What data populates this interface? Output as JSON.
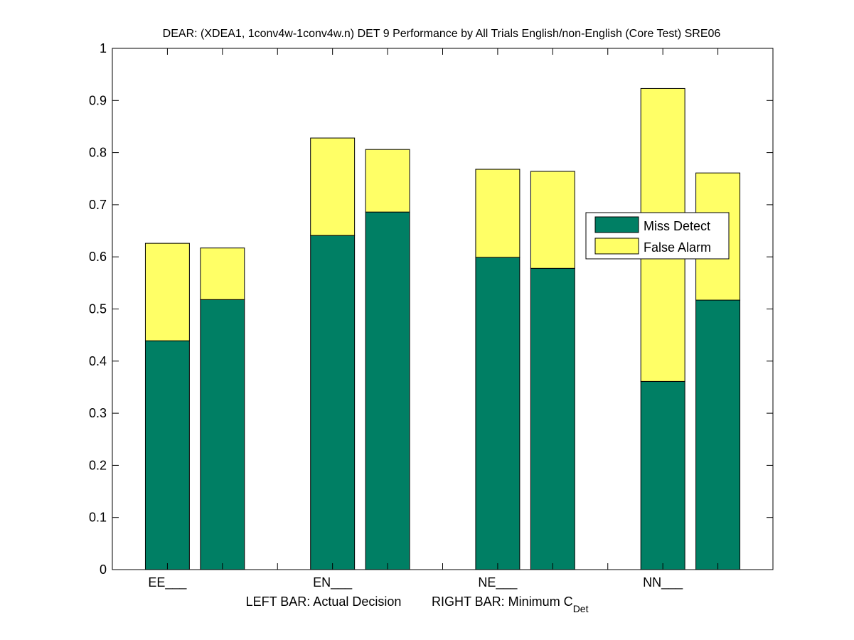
{
  "chart_data": {
    "type": "bar",
    "stacked": true,
    "title": "DEAR: (XDEA1, 1conv4w-1conv4w.n) DET 9 Performance by All Trials English/non-English (Core Test) SRE06",
    "xlabel_left": "LEFT BAR: Actual Decision",
    "xlabel_right_main": "RIGHT BAR: Minimum C",
    "xlabel_right_sub": "Det",
    "ylabel": "",
    "ylim": [
      0,
      1
    ],
    "yticks": [
      "0",
      "0.1",
      "0.2",
      "0.3",
      "0.4",
      "0.5",
      "0.6",
      "0.7",
      "0.8",
      "0.9",
      "1"
    ],
    "categories": [
      "EE___",
      "EN___",
      "NE___",
      "NN___"
    ],
    "bars_per_category": [
      "Actual Decision",
      "Minimum CDet"
    ],
    "series": [
      {
        "name": "Miss Detect",
        "color": "#007f64",
        "values": [
          [
            0.439,
            0.518
          ],
          [
            0.641,
            0.686
          ],
          [
            0.599,
            0.578
          ],
          [
            0.361,
            0.517
          ]
        ]
      },
      {
        "name": "False Alarm",
        "color": "#ffff66",
        "values": [
          [
            0.187,
            0.099
          ],
          [
            0.187,
            0.12
          ],
          [
            0.169,
            0.186
          ],
          [
            0.562,
            0.244
          ]
        ]
      }
    ],
    "totals": [
      [
        0.626,
        0.617
      ],
      [
        0.828,
        0.806
      ],
      [
        0.768,
        0.764
      ],
      [
        0.923,
        0.761
      ]
    ],
    "legend": {
      "position": "right-middle",
      "entries": [
        "Miss Detect",
        "False Alarm"
      ]
    },
    "grid": false
  }
}
